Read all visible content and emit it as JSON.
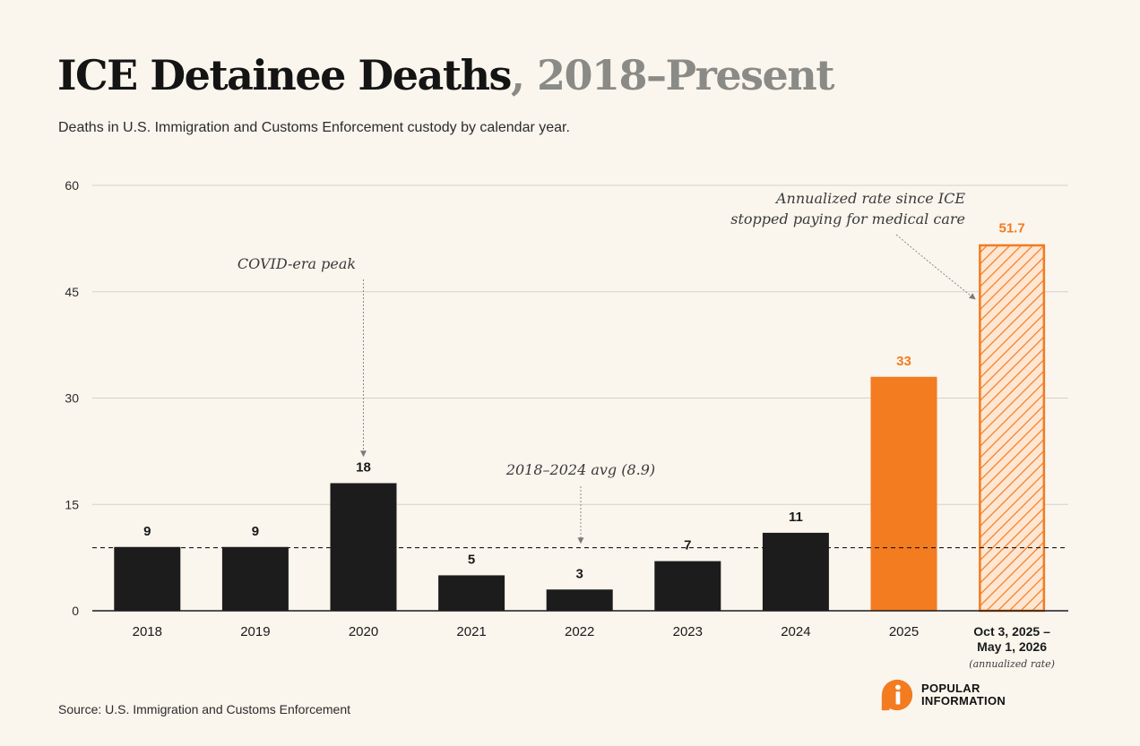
{
  "title": {
    "main": "ICE Detainee Deaths",
    "separator": ",",
    "sub": "2018–Present"
  },
  "subtitle": "Deaths in U.S. Immigration and Customs Enforcement custody by calendar year.",
  "source": "Source: U.S. Immigration and Customs Enforcement",
  "logo": {
    "line1": "POPULAR",
    "line2": "INFORMATION",
    "icon": "popular-information-logo-icon",
    "color": "#f37b20"
  },
  "colors": {
    "bar_default": "#1c1c1c",
    "bar_highlight": "#f37b20",
    "background": "#faf6ee"
  },
  "chart_data": {
    "type": "bar",
    "categories": [
      "2018",
      "2019",
      "2020",
      "2021",
      "2022",
      "2023",
      "2024",
      "2025",
      "Oct 3, 2025 –\nMay 1, 2026"
    ],
    "category_notes": [
      "",
      "",
      "",
      "",
      "",
      "",
      "",
      "",
      "(annualized rate)"
    ],
    "values": [
      9,
      9,
      18,
      5,
      3,
      7,
      11,
      33,
      51.7
    ],
    "value_labels": [
      "9",
      "9",
      "18",
      "5",
      "3",
      "7",
      "11",
      "33",
      "51.7"
    ],
    "bar_styles": [
      "solid",
      "solid",
      "solid",
      "solid",
      "solid",
      "solid",
      "solid",
      "highlight",
      "hatched"
    ],
    "title": "ICE Detainee Deaths, 2018–Present",
    "xlabel": "",
    "ylabel": "",
    "ylim": [
      0,
      60
    ],
    "yticks": [
      0,
      15,
      30,
      45,
      60
    ],
    "grid": true,
    "reference_line": {
      "value": 8.9,
      "label": "2018–2024 avg (8.9)",
      "style": "dashed"
    },
    "annotations": [
      {
        "text": "COVID-era peak",
        "target_category": "2020"
      },
      {
        "text": "Annualized rate since ICE\nstopped paying for medical care",
        "target_category": "Oct 3, 2025 –\nMay 1, 2026"
      }
    ]
  }
}
